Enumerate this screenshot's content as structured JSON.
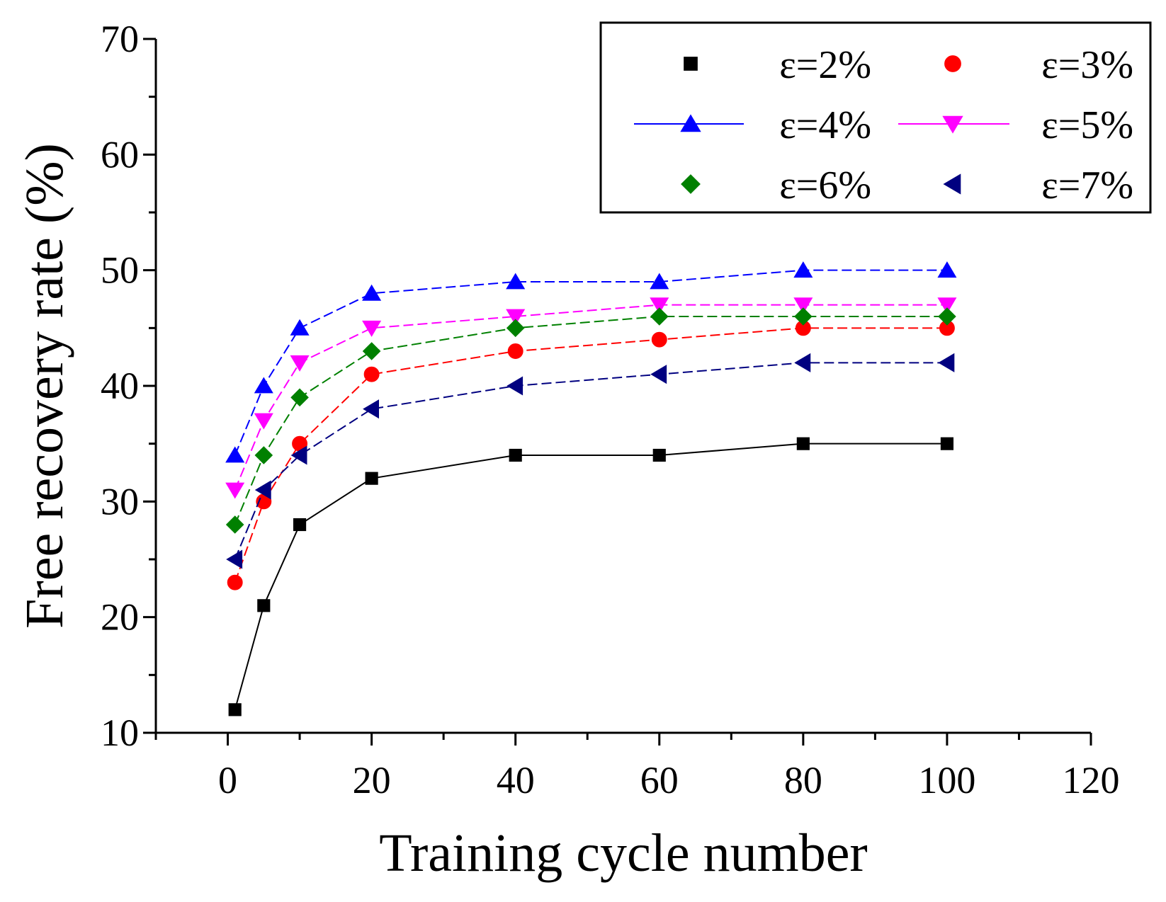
{
  "chart_data": {
    "type": "line",
    "title": "",
    "xlabel": "Training cycle number",
    "ylabel": "Free recovery rate (%)",
    "xlim": [
      -10,
      120
    ],
    "ylim": [
      10,
      70
    ],
    "x_ticks": [
      0,
      20,
      40,
      60,
      80,
      100,
      120
    ],
    "x_tick_labels": [
      "0",
      "20",
      "40",
      "60",
      "80",
      "100",
      "120"
    ],
    "y_ticks": [
      10,
      20,
      30,
      40,
      50,
      60,
      70
    ],
    "y_tick_labels": [
      "10",
      "20",
      "30",
      "40",
      "50",
      "60",
      "70"
    ],
    "grid": false,
    "legend_position": "top-right",
    "x": [
      1,
      5,
      10,
      20,
      40,
      60,
      80,
      100
    ],
    "series": [
      {
        "name": "ε=2%",
        "marker": "square",
        "color": "#000000",
        "values": [
          12,
          21,
          28,
          32,
          34,
          34,
          35,
          35
        ]
      },
      {
        "name": "ε=3%",
        "marker": "circle",
        "color": "#ff0000",
        "values": [
          23,
          30,
          35,
          41,
          43,
          44,
          45,
          45
        ]
      },
      {
        "name": "ε=4%",
        "marker": "triangle-up",
        "color": "#0000ff",
        "values": [
          34,
          40,
          45,
          48,
          49,
          49,
          50,
          50
        ]
      },
      {
        "name": "ε=5%",
        "marker": "triangle-down",
        "color": "#ff00ff",
        "values": [
          31,
          37,
          42,
          45,
          46,
          47,
          47,
          47
        ]
      },
      {
        "name": "ε=6%",
        "marker": "diamond",
        "color": "#008000",
        "values": [
          28,
          34,
          39,
          43,
          45,
          46,
          46,
          46
        ]
      },
      {
        "name": "ε=7%",
        "marker": "triangle-left",
        "color": "#000080",
        "values": [
          25,
          31,
          34,
          38,
          40,
          41,
          42,
          42
        ]
      }
    ]
  }
}
